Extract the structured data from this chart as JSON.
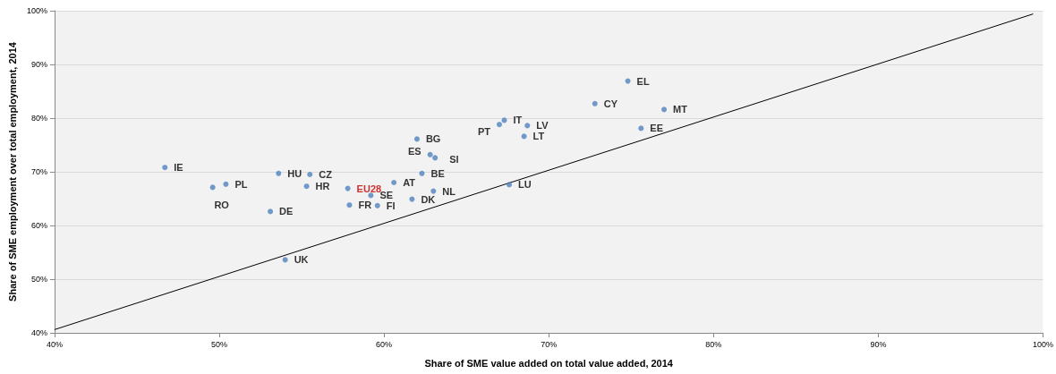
{
  "chart_data": {
    "type": "scatter",
    "xlabel": "Share of SME value added on total value added, 2014",
    "ylabel": "Share of SME employment over total employment, 2014",
    "xlim": [
      40,
      100
    ],
    "ylim": [
      40,
      100
    ],
    "xticks": [
      {
        "value": 40,
        "label": "40%"
      },
      {
        "value": 50,
        "label": "50%"
      },
      {
        "value": 60,
        "label": "60%"
      },
      {
        "value": 70,
        "label": "70%"
      },
      {
        "value": 80,
        "label": "80%"
      },
      {
        "value": 90,
        "label": "90%"
      },
      {
        "value": 100,
        "label": "100%"
      }
    ],
    "yticks": [
      {
        "value": 40,
        "label": "40%"
      },
      {
        "value": 50,
        "label": "50%"
      },
      {
        "value": 60,
        "label": "60%"
      },
      {
        "value": 70,
        "label": "70%"
      },
      {
        "value": 80,
        "label": "80%"
      },
      {
        "value": 90,
        "label": "90%"
      },
      {
        "value": 100,
        "label": "100%"
      }
    ],
    "grid": "y",
    "marker": "circle",
    "series": [
      {
        "color": "#4f81bd",
        "x": [
          46.7,
          50.4,
          49.6,
          53.6,
          55.5,
          55.3,
          53.1,
          59.2,
          57.9,
          59.6,
          60.6,
          61.7,
          62.3,
          63.0,
          62.0,
          62.8,
          63.1,
          67.6,
          54.0,
          67.3,
          67.0,
          68.7,
          68.5,
          72.8,
          74.8,
          77.0,
          75.6
        ],
        "values": [
          70.8,
          67.7,
          67.1,
          69.7,
          69.5,
          67.3,
          62.6,
          65.6,
          63.8,
          63.7,
          68.0,
          64.9,
          69.7,
          66.4,
          76.1,
          73.2,
          72.6,
          67.6,
          53.6,
          79.6,
          78.8,
          78.6,
          76.6,
          82.7,
          86.9,
          81.6,
          78.1
        ],
        "value_labels": [
          "IE",
          "PL",
          "RO",
          "HU",
          "CZ",
          "HR",
          "DE",
          "SE",
          "FR",
          "FI",
          "AT",
          "DK",
          "BE",
          "NL",
          "BG",
          "ES",
          "SI",
          "LU",
          "UK",
          "IT",
          "PT",
          "LV",
          "LT",
          "CY",
          "EL",
          "MT",
          "EE"
        ]
      },
      {
        "color": "#4f81bd",
        "x": [
          57.8
        ],
        "values": [
          66.9
        ],
        "value_labels": [
          "EU28"
        ]
      },
      {
        "type": "line",
        "color": "#000000",
        "marker": "none",
        "x": [
          40,
          99.4
        ],
        "values": [
          40.6,
          99.4
        ]
      }
    ]
  }
}
